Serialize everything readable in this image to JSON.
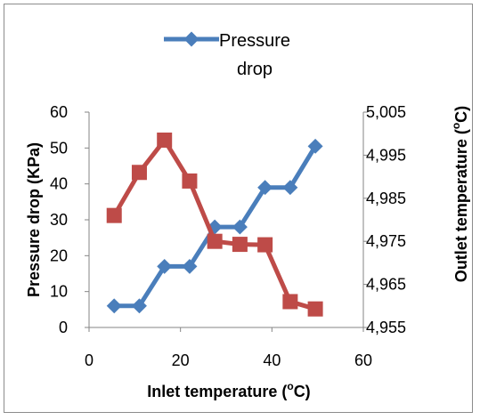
{
  "chart_data": {
    "type": "line",
    "x": [
      5.5,
      11,
      16.5,
      22,
      27.5,
      33,
      38.5,
      44,
      49.5
    ],
    "xlabel_main": "Inlet temperature (",
    "xlabel_sup": "o",
    "xlabel_end": "C)",
    "xlim": [
      0,
      60
    ],
    "xticks": [
      "0",
      "20",
      "40",
      "60"
    ],
    "ylabel": "Pressure drop (KPa)",
    "ylim": [
      0,
      60
    ],
    "yticks": [
      "0",
      "10",
      "20",
      "30",
      "40",
      "50",
      "60"
    ],
    "y2label_main": "Outlet temperature (",
    "y2label_sup": "o",
    "y2label_end": "C)",
    "y2lim": [
      4.955,
      5.005
    ],
    "y2ticks": [
      "4,955",
      "4,965",
      "4,975",
      "4,985",
      "4,995",
      "5,005"
    ],
    "legend_position": "top-center",
    "series": [
      {
        "name_line1": "Pressure",
        "name_line2": "drop",
        "axis": "left",
        "color": "#4a7ebb",
        "marker": "diamond",
        "values": [
          6,
          6,
          17,
          17,
          28,
          28,
          39,
          39,
          50.5
        ]
      },
      {
        "axis": "right",
        "color": "#be4b48",
        "marker": "square",
        "values": [
          4.981,
          4.991,
          4.9985,
          4.989,
          4.975,
          4.9743,
          4.9742,
          4.961,
          4.9593
        ]
      }
    ]
  }
}
